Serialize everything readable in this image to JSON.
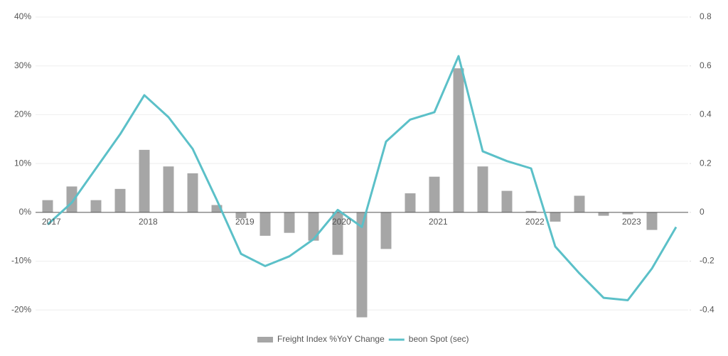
{
  "chart_data": {
    "type": "combo",
    "categories": [
      "2017",
      null,
      null,
      null,
      "2018",
      null,
      null,
      null,
      "2019",
      null,
      null,
      null,
      "2020",
      null,
      null,
      null,
      "2021",
      null,
      null,
      null,
      "2022",
      null,
      null,
      null,
      "2023",
      null,
      null
    ],
    "series": [
      {
        "name": "Freight Index %YoY Change",
        "type": "bar",
        "color": "#a6a6a6",
        "axis": "y",
        "values": [
          2.5,
          5.3,
          2.5,
          4.8,
          12.8,
          9.4,
          8.0,
          1.5,
          -1.2,
          -4.8,
          -4.2,
          -5.8,
          -8.7,
          -21.5,
          -7.5,
          3.9,
          7.3,
          29.5,
          9.4,
          4.4,
          0.3,
          -1.9,
          3.4,
          -0.7,
          -0.4,
          -3.6,
          null
        ]
      },
      {
        "name": "beon Spot (sec)",
        "type": "line",
        "color": "#5bc0c8",
        "axis": "y2",
        "values": [
          -0.05,
          0.04,
          0.18,
          0.32,
          0.48,
          0.39,
          0.26,
          0.05,
          -0.17,
          -0.22,
          -0.18,
          -0.11,
          0.01,
          -0.06,
          0.29,
          0.38,
          0.41,
          0.64,
          0.25,
          0.21,
          0.18,
          -0.14,
          -0.25,
          -0.35,
          -0.36,
          -0.23,
          -0.06
        ]
      }
    ],
    "ylim": [
      -22,
      40
    ],
    "yticks": [
      {
        "value": 40,
        "label": "40%"
      },
      {
        "value": 30,
        "label": "30%"
      },
      {
        "value": 20,
        "label": "20%"
      },
      {
        "value": 10,
        "label": "10%"
      },
      {
        "value": 0,
        "label": "0%"
      },
      {
        "value": -10,
        "label": "-10%"
      },
      {
        "value": -20,
        "label": "-20%"
      }
    ],
    "y2lim": [
      -0.44,
      0.8
    ],
    "y2ticks": [
      0.8,
      0.6,
      0.4,
      0.2,
      0,
      -0.2,
      -0.4
    ],
    "grid": true,
    "legend": "bottom"
  }
}
